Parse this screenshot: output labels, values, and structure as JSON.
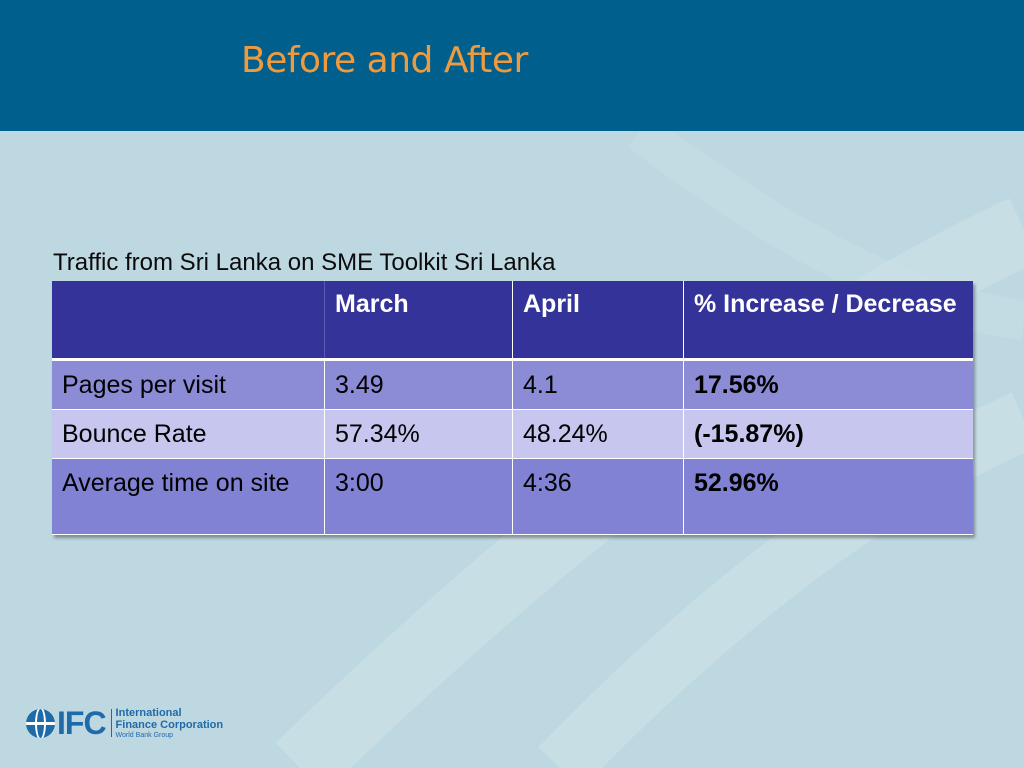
{
  "slide": {
    "title": "Before and After",
    "caption": "Traffic from Sri Lanka on SME Toolkit Sri Lanka"
  },
  "table": {
    "headers": [
      "",
      "March",
      "April",
      "% Increase  /  Decrease"
    ],
    "rows": [
      {
        "metric": "Pages per visit",
        "march": "3.49",
        "april": "4.1",
        "change": "17.56%"
      },
      {
        "metric": "Bounce Rate",
        "march": "57.34%",
        "april": "48.24%",
        "change": "(-15.87%)"
      },
      {
        "metric": "Average time on site",
        "march": "3:00",
        "april": "4:36",
        "change": "52.96%"
      }
    ]
  },
  "logo": {
    "mark": "IFC",
    "line1": "International",
    "line2": "Finance Corporation",
    "line3": "World Bank Group"
  },
  "colors": {
    "background": "#bed8e1",
    "title_band": "#005f8c",
    "title_text": "#f09a3e",
    "table_header": "#333399",
    "row_dark": "#8b8bd6",
    "row_light": "#c6c6ef",
    "logo_blue": "#1f6aa8"
  }
}
